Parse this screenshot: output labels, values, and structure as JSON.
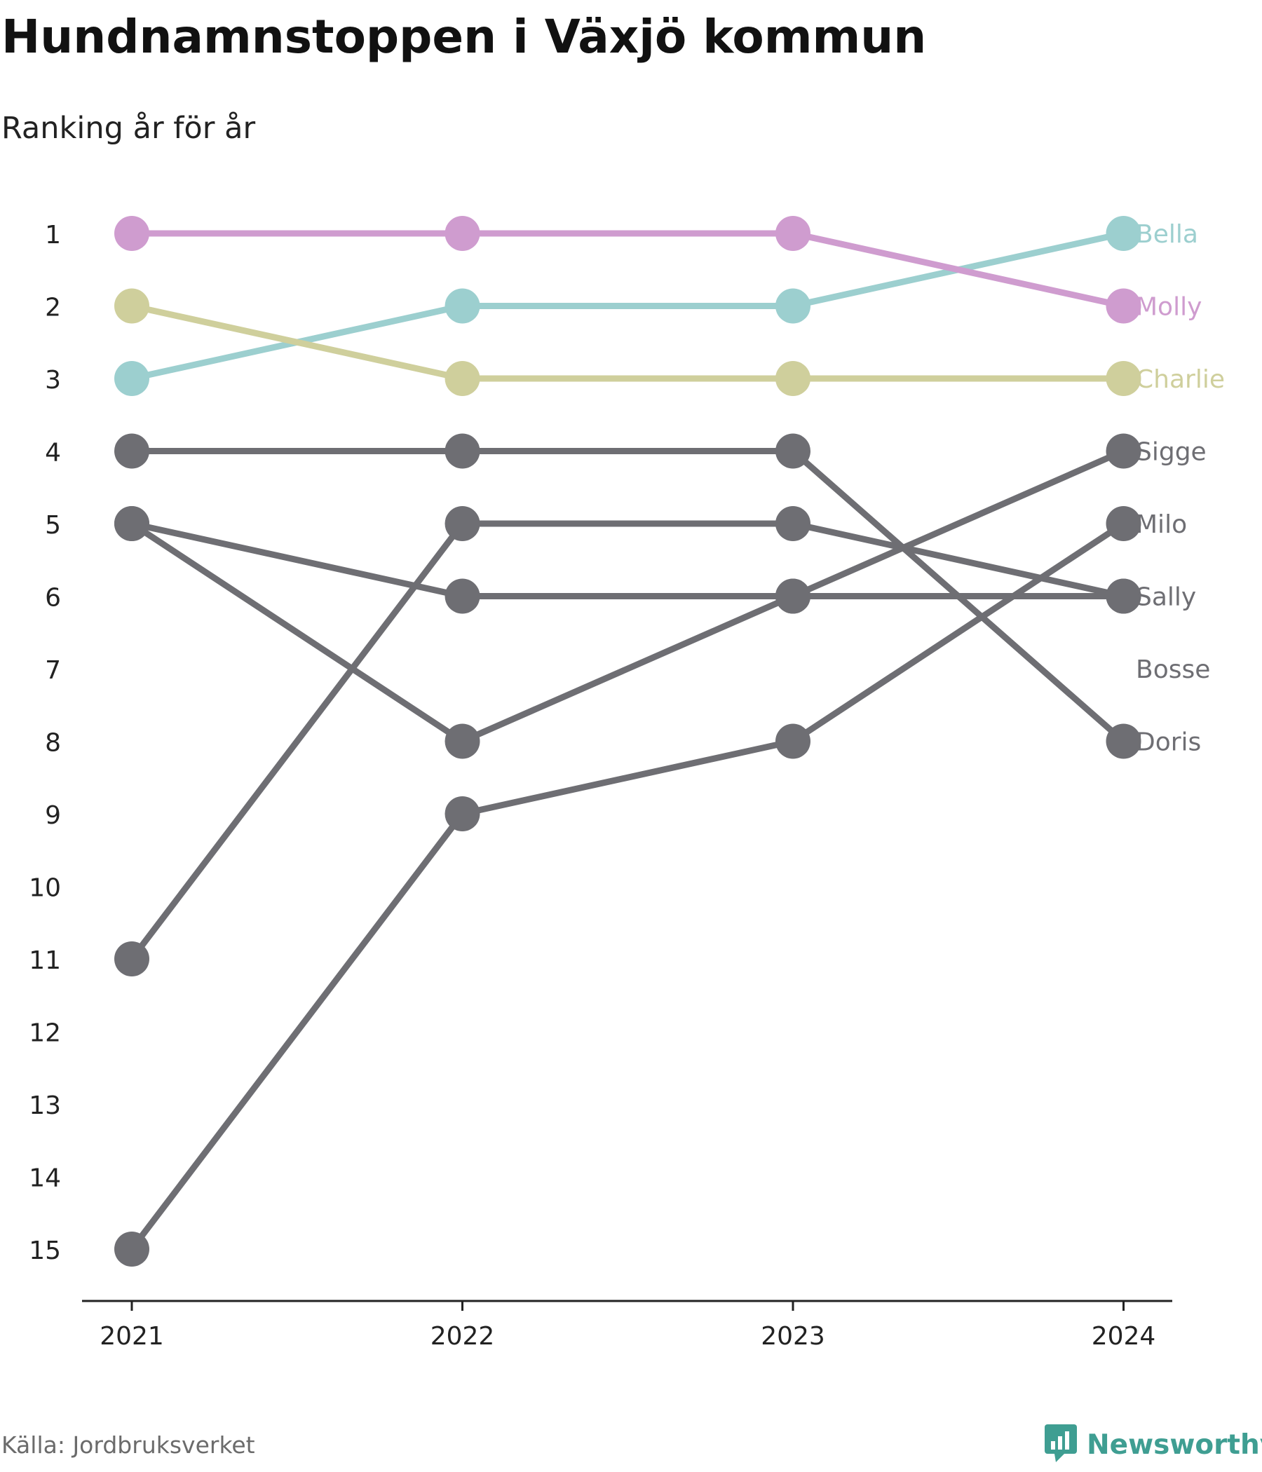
{
  "title": "Hundnamnstoppen i Växjö kommun",
  "subtitle": "Ranking år för år",
  "source": "Källa: Jordbruksverket",
  "brand": "Newsworthy",
  "colors": {
    "background": "#ffffff",
    "axis": "#222222",
    "label_text": "#222222",
    "source_text": "#6b6b6b",
    "brand": "#3f9e92"
  },
  "chart_data": {
    "type": "line",
    "title": "Hundnamnstoppen i Växjö kommun",
    "subtitle": "Ranking år för år",
    "x": [
      "2021",
      "2022",
      "2023",
      "2024"
    ],
    "y_ticks": [
      "1",
      "2",
      "3",
      "4",
      "5",
      "6",
      "7",
      "8",
      "9",
      "10",
      "11",
      "12",
      "13",
      "14",
      "15"
    ],
    "ylim": [
      1,
      15
    ],
    "y_inverted": true,
    "grid": false,
    "legend": "direct labels at right end of lines",
    "series": [
      {
        "name": "Bella",
        "color": "#9ccfcf",
        "values": [
          3,
          2,
          2,
          1
        ]
      },
      {
        "name": "Molly",
        "color": "#cf9ccf",
        "values": [
          1,
          1,
          1,
          2
        ]
      },
      {
        "name": "Charlie",
        "color": "#cfcf9c",
        "values": [
          2,
          3,
          3,
          3
        ]
      },
      {
        "name": "Sigge",
        "color": "#6e6e73",
        "values": [
          5,
          8,
          6,
          4
        ]
      },
      {
        "name": "Milo",
        "color": "#6e6e73",
        "values": [
          15,
          9,
          8,
          5
        ]
      },
      {
        "name": "Sally",
        "color": "#6e6e73",
        "values": [
          5,
          6,
          6,
          6
        ]
      },
      {
        "name": "Bosse",
        "color": "#6e6e73",
        "values": [
          11,
          5,
          5,
          6
        ]
      },
      {
        "name": "Doris",
        "color": "#6e6e73",
        "values": [
          4,
          4,
          4,
          8
        ]
      }
    ],
    "end_labels": [
      {
        "text": "Bella",
        "rank": 1,
        "color": "#9ccfcf"
      },
      {
        "text": "Molly",
        "rank": 2,
        "color": "#cf9ccf"
      },
      {
        "text": "Charlie",
        "rank": 3,
        "color": "#cfcf9c"
      },
      {
        "text": "Sigge",
        "rank": 4,
        "color": "#6e6e73"
      },
      {
        "text": "Milo",
        "rank": 5,
        "color": "#6e6e73"
      },
      {
        "text": "Sally",
        "rank": 6,
        "color": "#6e6e73"
      },
      {
        "text": "Bosse",
        "rank": 7,
        "color": "#6e6e73"
      },
      {
        "text": "Doris",
        "rank": 8,
        "color": "#6e6e73"
      }
    ]
  }
}
